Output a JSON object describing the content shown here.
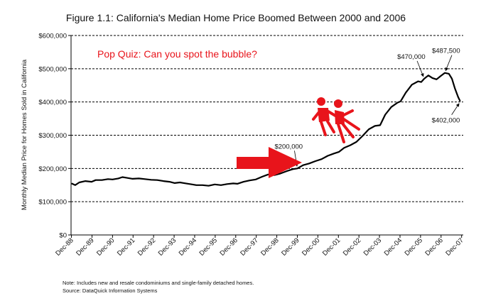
{
  "chart_data": {
    "type": "line",
    "title": "Figure 1.1: California's Median Home Price Boomed Between 2000 and 2006",
    "ylabel": "Monthly Median Price for Homes Sold in California",
    "xlabel": "",
    "ylim": [
      0,
      600000
    ],
    "yticks": [
      {
        "value": 0,
        "label": "$0"
      },
      {
        "value": 100000,
        "label": "$100,000"
      },
      {
        "value": 200000,
        "label": "$200,000"
      },
      {
        "value": 300000,
        "label": "$300,000"
      },
      {
        "value": 400000,
        "label": "$400,000"
      },
      {
        "value": 500000,
        "label": "$500,000"
      },
      {
        "value": 600000,
        "label": "$600,000"
      }
    ],
    "xlim": [
      1988.9,
      2008.0
    ],
    "xticks": [
      {
        "value": 1988.92,
        "label": "Dec-88"
      },
      {
        "value": 1989.92,
        "label": "Dec-89"
      },
      {
        "value": 1990.92,
        "label": "Dec-90"
      },
      {
        "value": 1991.92,
        "label": "Dec-91"
      },
      {
        "value": 1992.92,
        "label": "Dec-92"
      },
      {
        "value": 1993.92,
        "label": "Dec-93"
      },
      {
        "value": 1994.92,
        "label": "Dec-94"
      },
      {
        "value": 1995.92,
        "label": "Dec-95"
      },
      {
        "value": 1996.92,
        "label": "Dec-96"
      },
      {
        "value": 1997.92,
        "label": "Dec-97"
      },
      {
        "value": 1998.92,
        "label": "Dec-98"
      },
      {
        "value": 1999.92,
        "label": "Dec-99"
      },
      {
        "value": 2000.92,
        "label": "Dec-00"
      },
      {
        "value": 2001.92,
        "label": "Dec-01"
      },
      {
        "value": 2002.92,
        "label": "Dec-02"
      },
      {
        "value": 2003.92,
        "label": "Dec-03"
      },
      {
        "value": 2004.92,
        "label": "Dec-04"
      },
      {
        "value": 2005.92,
        "label": "Dec-05"
      },
      {
        "value": 2006.92,
        "label": "Dec-06"
      },
      {
        "value": 2007.92,
        "label": "Dec-07"
      }
    ],
    "grid": true,
    "gridStyle": "dashed",
    "series": [
      {
        "name": "",
        "color": "#000000",
        "points": [
          [
            1988.92,
            155000
          ],
          [
            1989.1,
            150000
          ],
          [
            1989.3,
            158000
          ],
          [
            1989.6,
            162000
          ],
          [
            1989.9,
            160000
          ],
          [
            1990.1,
            165000
          ],
          [
            1990.4,
            165000
          ],
          [
            1990.7,
            168000
          ],
          [
            1990.92,
            167000
          ],
          [
            1991.2,
            170000
          ],
          [
            1991.4,
            174000
          ],
          [
            1991.6,
            172000
          ],
          [
            1991.9,
            169000
          ],
          [
            1992.2,
            170000
          ],
          [
            1992.5,
            168000
          ],
          [
            1992.8,
            166000
          ],
          [
            1993.1,
            165000
          ],
          [
            1993.4,
            162000
          ],
          [
            1993.7,
            160000
          ],
          [
            1993.95,
            156000
          ],
          [
            1994.2,
            158000
          ],
          [
            1994.5,
            155000
          ],
          [
            1994.8,
            152000
          ],
          [
            1995.0,
            150000
          ],
          [
            1995.3,
            150000
          ],
          [
            1995.6,
            148000
          ],
          [
            1995.9,
            152000
          ],
          [
            1996.2,
            150000
          ],
          [
            1996.5,
            153000
          ],
          [
            1996.8,
            155000
          ],
          [
            1997.0,
            154000
          ],
          [
            1997.3,
            160000
          ],
          [
            1997.6,
            164000
          ],
          [
            1997.9,
            167000
          ],
          [
            1998.2,
            175000
          ],
          [
            1998.5,
            182000
          ],
          [
            1998.8,
            180000
          ],
          [
            1999.1,
            185000
          ],
          [
            1999.4,
            192000
          ],
          [
            1999.7,
            198000
          ],
          [
            1999.92,
            200000
          ],
          [
            2000.2,
            210000
          ],
          [
            2000.5,
            215000
          ],
          [
            2000.8,
            222000
          ],
          [
            2001.1,
            228000
          ],
          [
            2001.4,
            238000
          ],
          [
            2001.7,
            245000
          ],
          [
            2001.95,
            250000
          ],
          [
            2002.2,
            262000
          ],
          [
            2002.5,
            270000
          ],
          [
            2002.8,
            280000
          ],
          [
            2003.1,
            298000
          ],
          [
            2003.4,
            318000
          ],
          [
            2003.7,
            328000
          ],
          [
            2003.95,
            330000
          ],
          [
            2004.2,
            362000
          ],
          [
            2004.5,
            385000
          ],
          [
            2004.8,
            398000
          ],
          [
            2004.95,
            402000
          ],
          [
            2005.2,
            428000
          ],
          [
            2005.5,
            452000
          ],
          [
            2005.8,
            462000
          ],
          [
            2005.95,
            460000
          ],
          [
            2006.1,
            470000
          ],
          [
            2006.3,
            480000
          ],
          [
            2006.5,
            472000
          ],
          [
            2006.7,
            468000
          ],
          [
            2006.9,
            478000
          ],
          [
            2007.1,
            487500
          ],
          [
            2007.3,
            485000
          ],
          [
            2007.45,
            470000
          ],
          [
            2007.6,
            440000
          ],
          [
            2007.75,
            415000
          ],
          [
            2007.85,
            402000
          ]
        ]
      }
    ],
    "annotations": [
      {
        "text": "$200,000",
        "x": 1999.92,
        "y": 200000
      },
      {
        "text": "$470,000",
        "x": 2006.1,
        "y": 470000
      },
      {
        "text": "$487,500",
        "x": 2007.1,
        "y": 487500
      },
      {
        "text": "$402,000",
        "x": 2007.85,
        "y": 402000
      }
    ]
  },
  "overlay": {
    "quiz_text": "Pop Quiz:  Can you spot the bubble?",
    "quiz_color": "#e8141b",
    "arrow_color": "#e8141b",
    "figure_icon": "falling-people-icon"
  },
  "footer": {
    "note": "Note: Includes new and resale condominiums and single-family detached homes.",
    "source": "Source: DataQuick Information Systems"
  }
}
